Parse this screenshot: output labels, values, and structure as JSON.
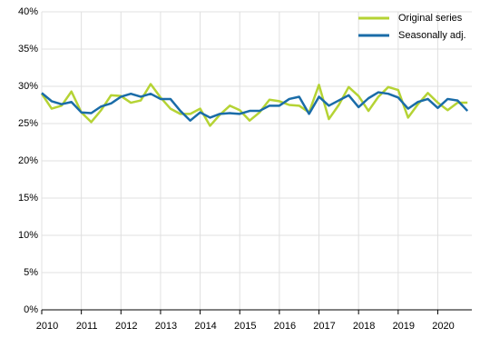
{
  "chart_data": {
    "type": "line",
    "x": [
      2010,
      2010.25,
      2010.5,
      2010.75,
      2011,
      2011.25,
      2011.5,
      2011.75,
      2012,
      2012.25,
      2012.5,
      2012.75,
      2013,
      2013.25,
      2013.5,
      2013.75,
      2014,
      2014.25,
      2014.5,
      2014.75,
      2015,
      2015.25,
      2015.5,
      2015.75,
      2016,
      2016.25,
      2016.5,
      2016.75,
      2017,
      2017.25,
      2017.5,
      2017.75,
      2018,
      2018.25,
      2018.5,
      2018.75,
      2019,
      2019.25,
      2019.5,
      2019.75,
      2020,
      2020.25,
      2020.5,
      2020.75
    ],
    "series": [
      {
        "name": "Original series",
        "color": "#b5d334",
        "values": [
          29.0,
          27.0,
          27.4,
          29.3,
          26.5,
          25.2,
          26.8,
          28.8,
          28.7,
          27.8,
          28.1,
          30.3,
          28.5,
          27.0,
          26.3,
          26.3,
          27.0,
          24.7,
          26.2,
          27.4,
          26.8,
          25.4,
          26.5,
          28.2,
          28.0,
          27.5,
          27.4,
          26.5,
          30.2,
          25.6,
          27.5,
          29.9,
          28.7,
          26.7,
          28.6,
          29.9,
          29.5,
          25.8,
          27.6,
          29.1,
          27.8,
          26.8,
          27.8,
          27.8
        ]
      },
      {
        "name": "Seasonally adj.",
        "color": "#1a6ca8",
        "values": [
          29.1,
          28.0,
          27.6,
          27.9,
          26.5,
          26.4,
          27.3,
          27.7,
          28.6,
          29.0,
          28.6,
          29.0,
          28.3,
          28.3,
          26.7,
          25.4,
          26.5,
          25.8,
          26.3,
          26.4,
          26.3,
          26.7,
          26.7,
          27.4,
          27.4,
          28.3,
          28.6,
          26.3,
          28.6,
          27.4,
          28.1,
          28.8,
          27.2,
          28.4,
          29.2,
          29.0,
          28.5,
          27.0,
          27.9,
          28.3,
          27.1,
          28.3,
          28.1,
          26.7
        ]
      }
    ],
    "xlim": [
      2010,
      2020.86
    ],
    "xticks": [
      2010,
      2011,
      2012,
      2013,
      2014,
      2015,
      2016,
      2017,
      2018,
      2019,
      2020
    ],
    "ylim": [
      0,
      40
    ],
    "yticks": [
      {
        "value": 0,
        "label": "0%"
      },
      {
        "value": 5,
        "label": "5%"
      },
      {
        "value": 10,
        "label": "10%"
      },
      {
        "value": 15,
        "label": "15%"
      },
      {
        "value": 20,
        "label": "20%"
      },
      {
        "value": 25,
        "label": "25%"
      },
      {
        "value": 30,
        "label": "30%"
      },
      {
        "value": 35,
        "label": "35%"
      },
      {
        "value": 40,
        "label": "40%"
      }
    ],
    "grid": true,
    "legend": "top-right"
  }
}
